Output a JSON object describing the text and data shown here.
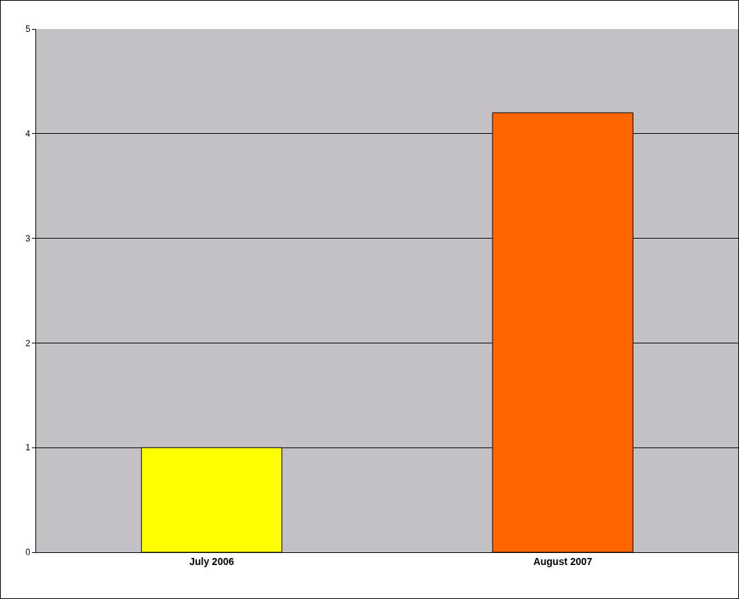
{
  "chart_data": {
    "type": "bar",
    "categories": [
      "July 2006",
      "August 2007"
    ],
    "values": [
      1,
      4.2
    ],
    "colors": [
      "#ffff00",
      "#ff6600"
    ],
    "ylim": [
      0,
      5
    ],
    "yticks": [
      0,
      1,
      2,
      3,
      4,
      5
    ],
    "grid": "y"
  }
}
